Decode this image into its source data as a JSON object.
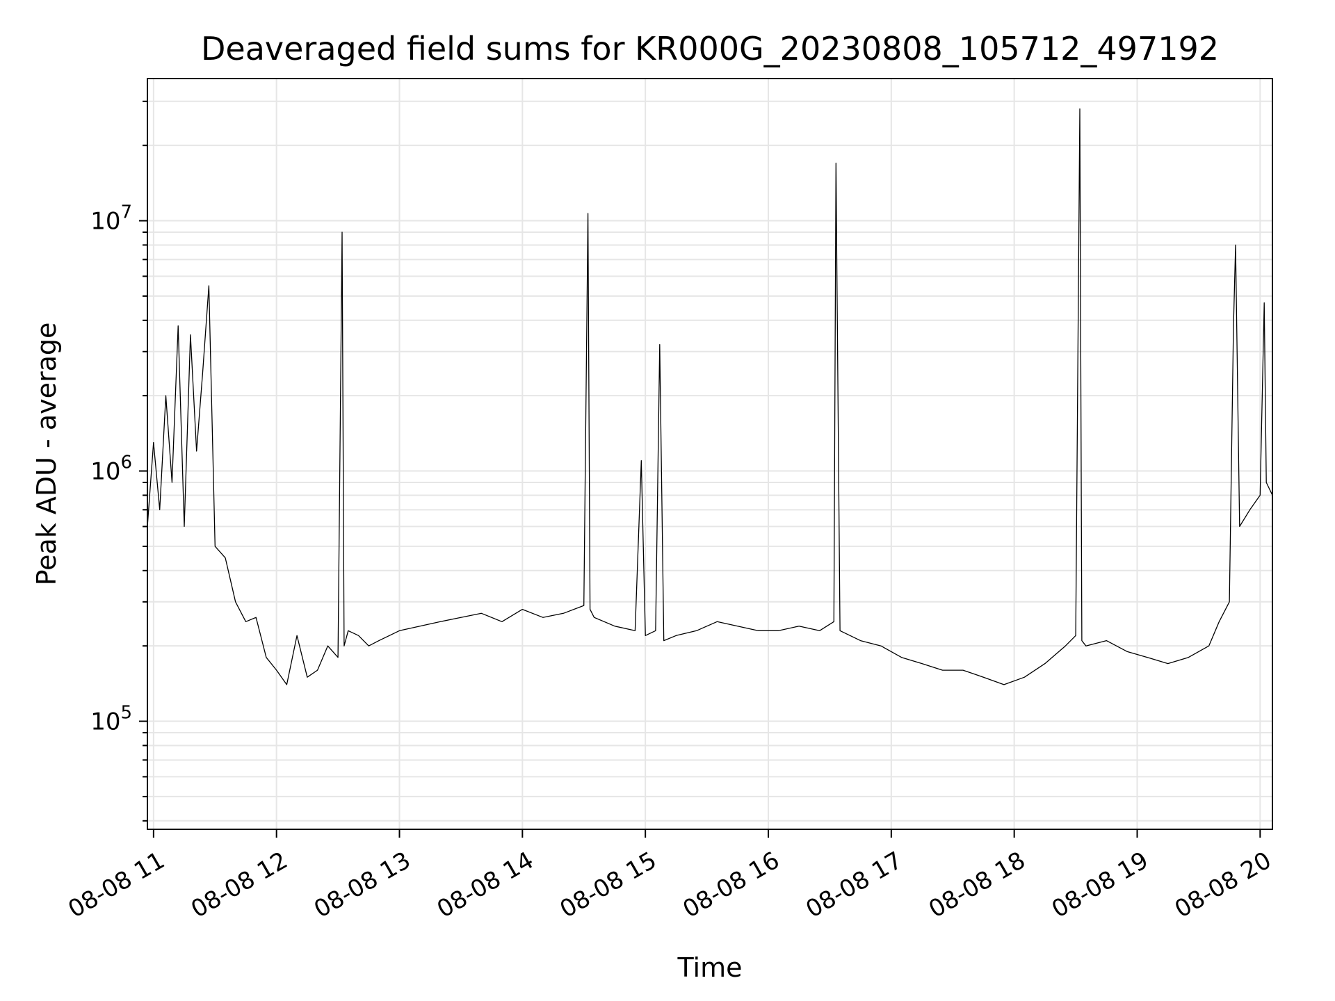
{
  "chart_data": {
    "type": "line",
    "title": "Deaveraged field sums for KR000G_20230808_105712_497192",
    "xlabel": "Time",
    "ylabel": "Peak ADU - average",
    "yscale": "log",
    "ylim": [
      37000,
      37000000
    ],
    "xlim": [
      "2023-08-08 10:57",
      "2023-08-08 20:06"
    ],
    "grid": true,
    "line_color": "#000000",
    "grid_color": "#e6e6e6",
    "x_ticks": [
      "2023-08-08 11:00",
      "2023-08-08 12:00",
      "2023-08-08 13:00",
      "2023-08-08 14:00",
      "2023-08-08 15:00",
      "2023-08-08 16:00",
      "2023-08-08 17:00",
      "2023-08-08 18:00",
      "2023-08-08 19:00",
      "2023-08-08 20:00"
    ],
    "x_tick_labels": [
      "08-08 11",
      "08-08 12",
      "08-08 13",
      "08-08 14",
      "08-08 15",
      "08-08 16",
      "08-08 17",
      "08-08 18",
      "08-08 19",
      "08-08 20"
    ],
    "y_ticks": [
      {
        "value": 100000,
        "base": "10",
        "exp": "5"
      },
      {
        "value": 1000000,
        "base": "10",
        "exp": "6"
      },
      {
        "value": 10000000,
        "base": "10",
        "exp": "7"
      }
    ],
    "series": [
      {
        "x": [
          "2023-08-08 10:57",
          "2023-08-08 11:00",
          "2023-08-08 11:03",
          "2023-08-08 11:06",
          "2023-08-08 11:09",
          "2023-08-08 11:12",
          "2023-08-08 11:15",
          "2023-08-08 11:18",
          "2023-08-08 11:21",
          "2023-08-08 11:24",
          "2023-08-08 11:27",
          "2023-08-08 11:30",
          "2023-08-08 11:35",
          "2023-08-08 11:40",
          "2023-08-08 11:45",
          "2023-08-08 11:50",
          "2023-08-08 11:55",
          "2023-08-08 12:00",
          "2023-08-08 12:05",
          "2023-08-08 12:10",
          "2023-08-08 12:15",
          "2023-08-08 12:20",
          "2023-08-08 12:25",
          "2023-08-08 12:30",
          "2023-08-08 12:32",
          "2023-08-08 12:33",
          "2023-08-08 12:35",
          "2023-08-08 12:40",
          "2023-08-08 12:45",
          "2023-08-08 12:50",
          "2023-08-08 13:00",
          "2023-08-08 13:10",
          "2023-08-08 13:20",
          "2023-08-08 13:30",
          "2023-08-08 13:40",
          "2023-08-08 13:50",
          "2023-08-08 14:00",
          "2023-08-08 14:10",
          "2023-08-08 14:20",
          "2023-08-08 14:30",
          "2023-08-08 14:32",
          "2023-08-08 14:33",
          "2023-08-08 14:35",
          "2023-08-08 14:45",
          "2023-08-08 14:55",
          "2023-08-08 14:58",
          "2023-08-08 15:00",
          "2023-08-08 15:05",
          "2023-08-08 15:07",
          "2023-08-08 15:09",
          "2023-08-08 15:15",
          "2023-08-08 15:25",
          "2023-08-08 15:35",
          "2023-08-08 15:45",
          "2023-08-08 15:55",
          "2023-08-08 16:05",
          "2023-08-08 16:15",
          "2023-08-08 16:25",
          "2023-08-08 16:32",
          "2023-08-08 16:33",
          "2023-08-08 16:35",
          "2023-08-08 16:45",
          "2023-08-08 16:55",
          "2023-08-08 17:05",
          "2023-08-08 17:15",
          "2023-08-08 17:25",
          "2023-08-08 17:35",
          "2023-08-08 17:45",
          "2023-08-08 17:55",
          "2023-08-08 18:05",
          "2023-08-08 18:15",
          "2023-08-08 18:25",
          "2023-08-08 18:30",
          "2023-08-08 18:32",
          "2023-08-08 18:33",
          "2023-08-08 18:35",
          "2023-08-08 18:45",
          "2023-08-08 18:55",
          "2023-08-08 19:05",
          "2023-08-08 19:15",
          "2023-08-08 19:25",
          "2023-08-08 19:35",
          "2023-08-08 19:40",
          "2023-08-08 19:45",
          "2023-08-08 19:47",
          "2023-08-08 19:48",
          "2023-08-08 19:50",
          "2023-08-08 19:55",
          "2023-08-08 20:00",
          "2023-08-08 20:02",
          "2023-08-08 20:03",
          "2023-08-08 20:06"
        ],
        "y": [
          600000,
          1300000,
          700000,
          2000000,
          900000,
          3800000,
          600000,
          3500000,
          1200000,
          2500000,
          5500000,
          500000,
          450000,
          300000,
          250000,
          260000,
          180000,
          160000,
          140000,
          220000,
          150000,
          160000,
          200000,
          180000,
          9000000,
          200000,
          230000,
          220000,
          200000,
          210000,
          230000,
          240000,
          250000,
          260000,
          270000,
          250000,
          280000,
          260000,
          270000,
          290000,
          10700000,
          280000,
          260000,
          240000,
          230000,
          1100000,
          220000,
          230000,
          3200000,
          210000,
          220000,
          230000,
          250000,
          240000,
          230000,
          230000,
          240000,
          230000,
          250000,
          17000000,
          230000,
          210000,
          200000,
          180000,
          170000,
          160000,
          160000,
          150000,
          140000,
          150000,
          170000,
          200000,
          220000,
          28000000,
          210000,
          200000,
          210000,
          190000,
          180000,
          170000,
          180000,
          200000,
          250000,
          300000,
          3800000,
          8000000,
          600000,
          700000,
          800000,
          4700000,
          900000,
          800000
        ]
      }
    ]
  }
}
